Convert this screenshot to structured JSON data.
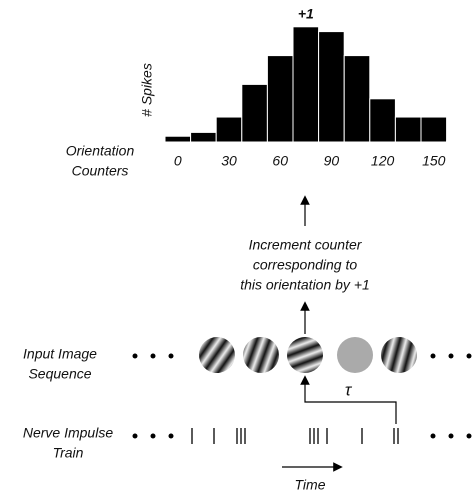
{
  "histogram": {
    "type": "bar",
    "y_label": "# Spikes",
    "x_label": [
      "Orientation",
      "Counters"
    ],
    "annotation": "+1",
    "values": [
      6,
      10,
      26,
      60,
      90,
      120,
      115,
      90,
      45,
      26,
      26,
      1
    ],
    "ylim": [
      0,
      125
    ],
    "xticks": [
      0,
      30,
      60,
      90,
      120,
      150
    ],
    "color": "#000000"
  },
  "increment_text": [
    "Increment counter",
    "corresponding to",
    "this orientation by +1"
  ],
  "input_label": [
    "Input Image",
    "Sequence"
  ],
  "nerve_label": [
    "Nerve Impulse",
    "Train"
  ],
  "tau": "τ",
  "time_label": "Time"
}
